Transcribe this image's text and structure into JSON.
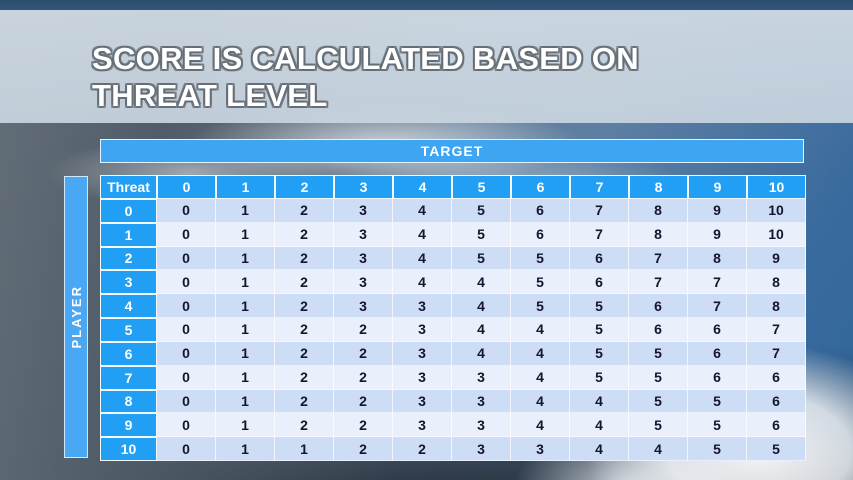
{
  "slide": {
    "title_line1": "SCORE IS CALCULATED BASED ON",
    "title_line2": "THREAT LEVEL"
  },
  "matrix": {
    "target_label": "TARGET",
    "player_label": "PLAYER",
    "corner_label": "Threat",
    "column_headers": [
      "0",
      "1",
      "2",
      "3",
      "4",
      "5",
      "6",
      "7",
      "8",
      "9",
      "10"
    ],
    "rows": [
      {
        "label": "0",
        "values": [
          0,
          1,
          2,
          3,
          4,
          5,
          6,
          7,
          8,
          9,
          10
        ]
      },
      {
        "label": "1",
        "values": [
          0,
          1,
          2,
          3,
          4,
          5,
          6,
          7,
          8,
          9,
          10
        ]
      },
      {
        "label": "2",
        "values": [
          0,
          1,
          2,
          3,
          4,
          5,
          5,
          6,
          7,
          8,
          9
        ]
      },
      {
        "label": "3",
        "values": [
          0,
          1,
          2,
          3,
          4,
          4,
          5,
          6,
          7,
          7,
          8
        ]
      },
      {
        "label": "4",
        "values": [
          0,
          1,
          2,
          3,
          3,
          4,
          5,
          5,
          6,
          7,
          8
        ]
      },
      {
        "label": "5",
        "values": [
          0,
          1,
          2,
          2,
          3,
          4,
          4,
          5,
          6,
          6,
          7
        ]
      },
      {
        "label": "6",
        "values": [
          0,
          1,
          2,
          2,
          3,
          4,
          4,
          5,
          5,
          6,
          7
        ]
      },
      {
        "label": "7",
        "values": [
          0,
          1,
          2,
          2,
          3,
          3,
          4,
          5,
          5,
          6,
          6
        ]
      },
      {
        "label": "8",
        "values": [
          0,
          1,
          2,
          2,
          3,
          3,
          4,
          4,
          5,
          5,
          6
        ]
      },
      {
        "label": "9",
        "values": [
          0,
          1,
          2,
          2,
          3,
          3,
          4,
          4,
          5,
          5,
          6
        ]
      },
      {
        "label": "10",
        "values": [
          0,
          1,
          1,
          2,
          2,
          3,
          3,
          4,
          4,
          5,
          5
        ]
      }
    ]
  },
  "chart_data": {
    "type": "table",
    "title": "Score is calculated based on threat level",
    "row_axis": "PLAYER (Threat)",
    "column_axis": "TARGET",
    "columns": [
      "Threat",
      "0",
      "1",
      "2",
      "3",
      "4",
      "5",
      "6",
      "7",
      "8",
      "9",
      "10"
    ],
    "rows": [
      [
        "0",
        0,
        1,
        2,
        3,
        4,
        5,
        6,
        7,
        8,
        9,
        10
      ],
      [
        "1",
        0,
        1,
        2,
        3,
        4,
        5,
        6,
        7,
        8,
        9,
        10
      ],
      [
        "2",
        0,
        1,
        2,
        3,
        4,
        5,
        5,
        6,
        7,
        8,
        9
      ],
      [
        "3",
        0,
        1,
        2,
        3,
        4,
        4,
        5,
        6,
        7,
        7,
        8
      ],
      [
        "4",
        0,
        1,
        2,
        3,
        3,
        4,
        5,
        5,
        6,
        7,
        8
      ],
      [
        "5",
        0,
        1,
        2,
        2,
        3,
        4,
        4,
        5,
        6,
        6,
        7
      ],
      [
        "6",
        0,
        1,
        2,
        2,
        3,
        4,
        4,
        5,
        5,
        6,
        7
      ],
      [
        "7",
        0,
        1,
        2,
        2,
        3,
        3,
        4,
        5,
        5,
        6,
        6
      ],
      [
        "8",
        0,
        1,
        2,
        2,
        3,
        3,
        4,
        4,
        5,
        5,
        6
      ],
      [
        "9",
        0,
        1,
        2,
        2,
        3,
        3,
        4,
        4,
        5,
        5,
        6
      ],
      [
        "10",
        0,
        1,
        1,
        2,
        2,
        3,
        3,
        4,
        4,
        5,
        5
      ]
    ]
  },
  "colors": {
    "accent_blue": "#219ff4",
    "target_bar_blue": "#3ea5f3",
    "player_bar_blue": "#4aa7f4",
    "row_dark": "#cdddf5",
    "row_light": "#e9effb",
    "cell_text": "#15152d",
    "title_text": "#ffffff",
    "title_band": "#cfdae4"
  }
}
